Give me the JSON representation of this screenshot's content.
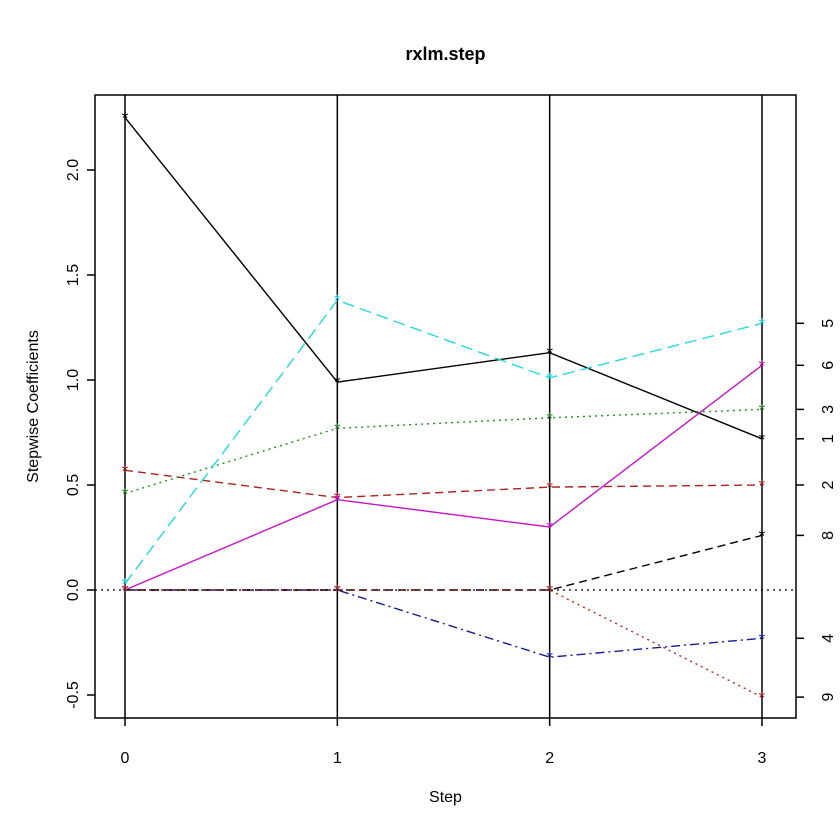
{
  "figure": {
    "background": "#ffffff",
    "foreground": "#000000"
  },
  "chart_data": {
    "type": "line",
    "title": "rxlm.step",
    "xlabel": "Step",
    "ylabel": "Stepwise Coefficients",
    "x": [
      0,
      1,
      2,
      3
    ],
    "x_tick_labels": [
      "0",
      "1",
      "2",
      "3"
    ],
    "y_ticks": [
      -0.5,
      0.0,
      0.5,
      1.0,
      1.5,
      2.0
    ],
    "y_tick_labels": [
      "-0.5",
      "0.0",
      "0.5",
      "1.0",
      "1.5",
      "2.0"
    ],
    "xlim": [
      -0.14,
      3.16
    ],
    "ylim": [
      -0.61,
      2.36
    ],
    "grid": "vertical-line-at-each-step",
    "zero_reference_line": true,
    "marker": "*",
    "legend_position": "right-axis-labels-at-final-values",
    "series": [
      {
        "name": "1",
        "color": "#000000",
        "linestyle": "solid",
        "values": [
          2.25,
          0.99,
          1.13,
          0.72
        ]
      },
      {
        "name": "2",
        "color": "#AA2222",
        "linestyle": "dashed",
        "values": [
          0.57,
          0.44,
          0.49,
          0.5
        ]
      },
      {
        "name": "3",
        "color": "#228B22",
        "linestyle": "dotted",
        "values": [
          0.46,
          0.77,
          0.82,
          0.86
        ]
      },
      {
        "name": "4",
        "color": "#1A1A8F",
        "linestyle": "dotdash",
        "values": [
          0.0,
          0.0,
          -0.32,
          -0.23
        ]
      },
      {
        "name": "5",
        "color": "#27D7E2",
        "linestyle": "longdash",
        "values": [
          0.03,
          1.38,
          1.01,
          1.27
        ]
      },
      {
        "name": "6",
        "color": "#C613C6",
        "linestyle": "solid",
        "values": [
          0.0,
          0.43,
          0.3,
          1.07
        ]
      },
      {
        "name": "8",
        "color": "#000000",
        "linestyle": "dashed",
        "values": [
          0.0,
          0.0,
          0.0,
          0.26
        ]
      },
      {
        "name": "9",
        "color": "#B02525",
        "linestyle": "dotted",
        "values": [
          0.0,
          0.0,
          0.0,
          -0.51
        ]
      }
    ],
    "right_axis_labels": [
      "5",
      "6",
      "3",
      "1",
      "2",
      "8",
      "4",
      "9"
    ]
  }
}
